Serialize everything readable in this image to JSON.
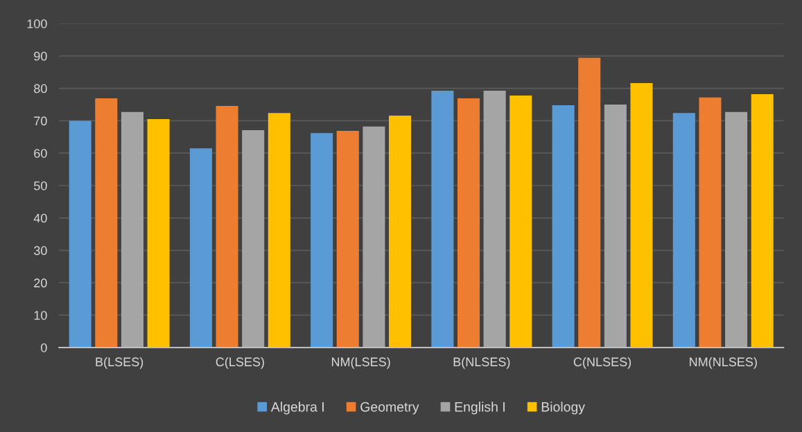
{
  "chart_data": {
    "type": "bar",
    "categories": [
      "B(LSES)",
      "C(LSES)",
      "NM(LSES)",
      "B(NLSES)",
      "C(NLSES)",
      "NM(NLSES)"
    ],
    "series": [
      {
        "name": "Algebra I",
        "color": "#5b9bd5",
        "values": [
          70.0,
          61.5,
          66.2,
          79.3,
          74.8,
          72.4
        ]
      },
      {
        "name": "Geometry",
        "color": "#ed7d31",
        "values": [
          76.9,
          74.6,
          66.9,
          76.9,
          89.4,
          77.2
        ]
      },
      {
        "name": "English I",
        "color": "#a5a5a5",
        "values": [
          72.7,
          67.1,
          68.2,
          79.3,
          75.0,
          72.7
        ]
      },
      {
        "name": "Biology",
        "color": "#ffc000",
        "values": [
          70.5,
          72.4,
          71.6,
          77.8,
          81.6,
          78.2
        ]
      }
    ],
    "ylim": [
      0,
      100
    ],
    "yticks": [
      0,
      10,
      20,
      30,
      40,
      50,
      60,
      70,
      80,
      90,
      100
    ],
    "grid": "y",
    "legend": "bottom"
  }
}
